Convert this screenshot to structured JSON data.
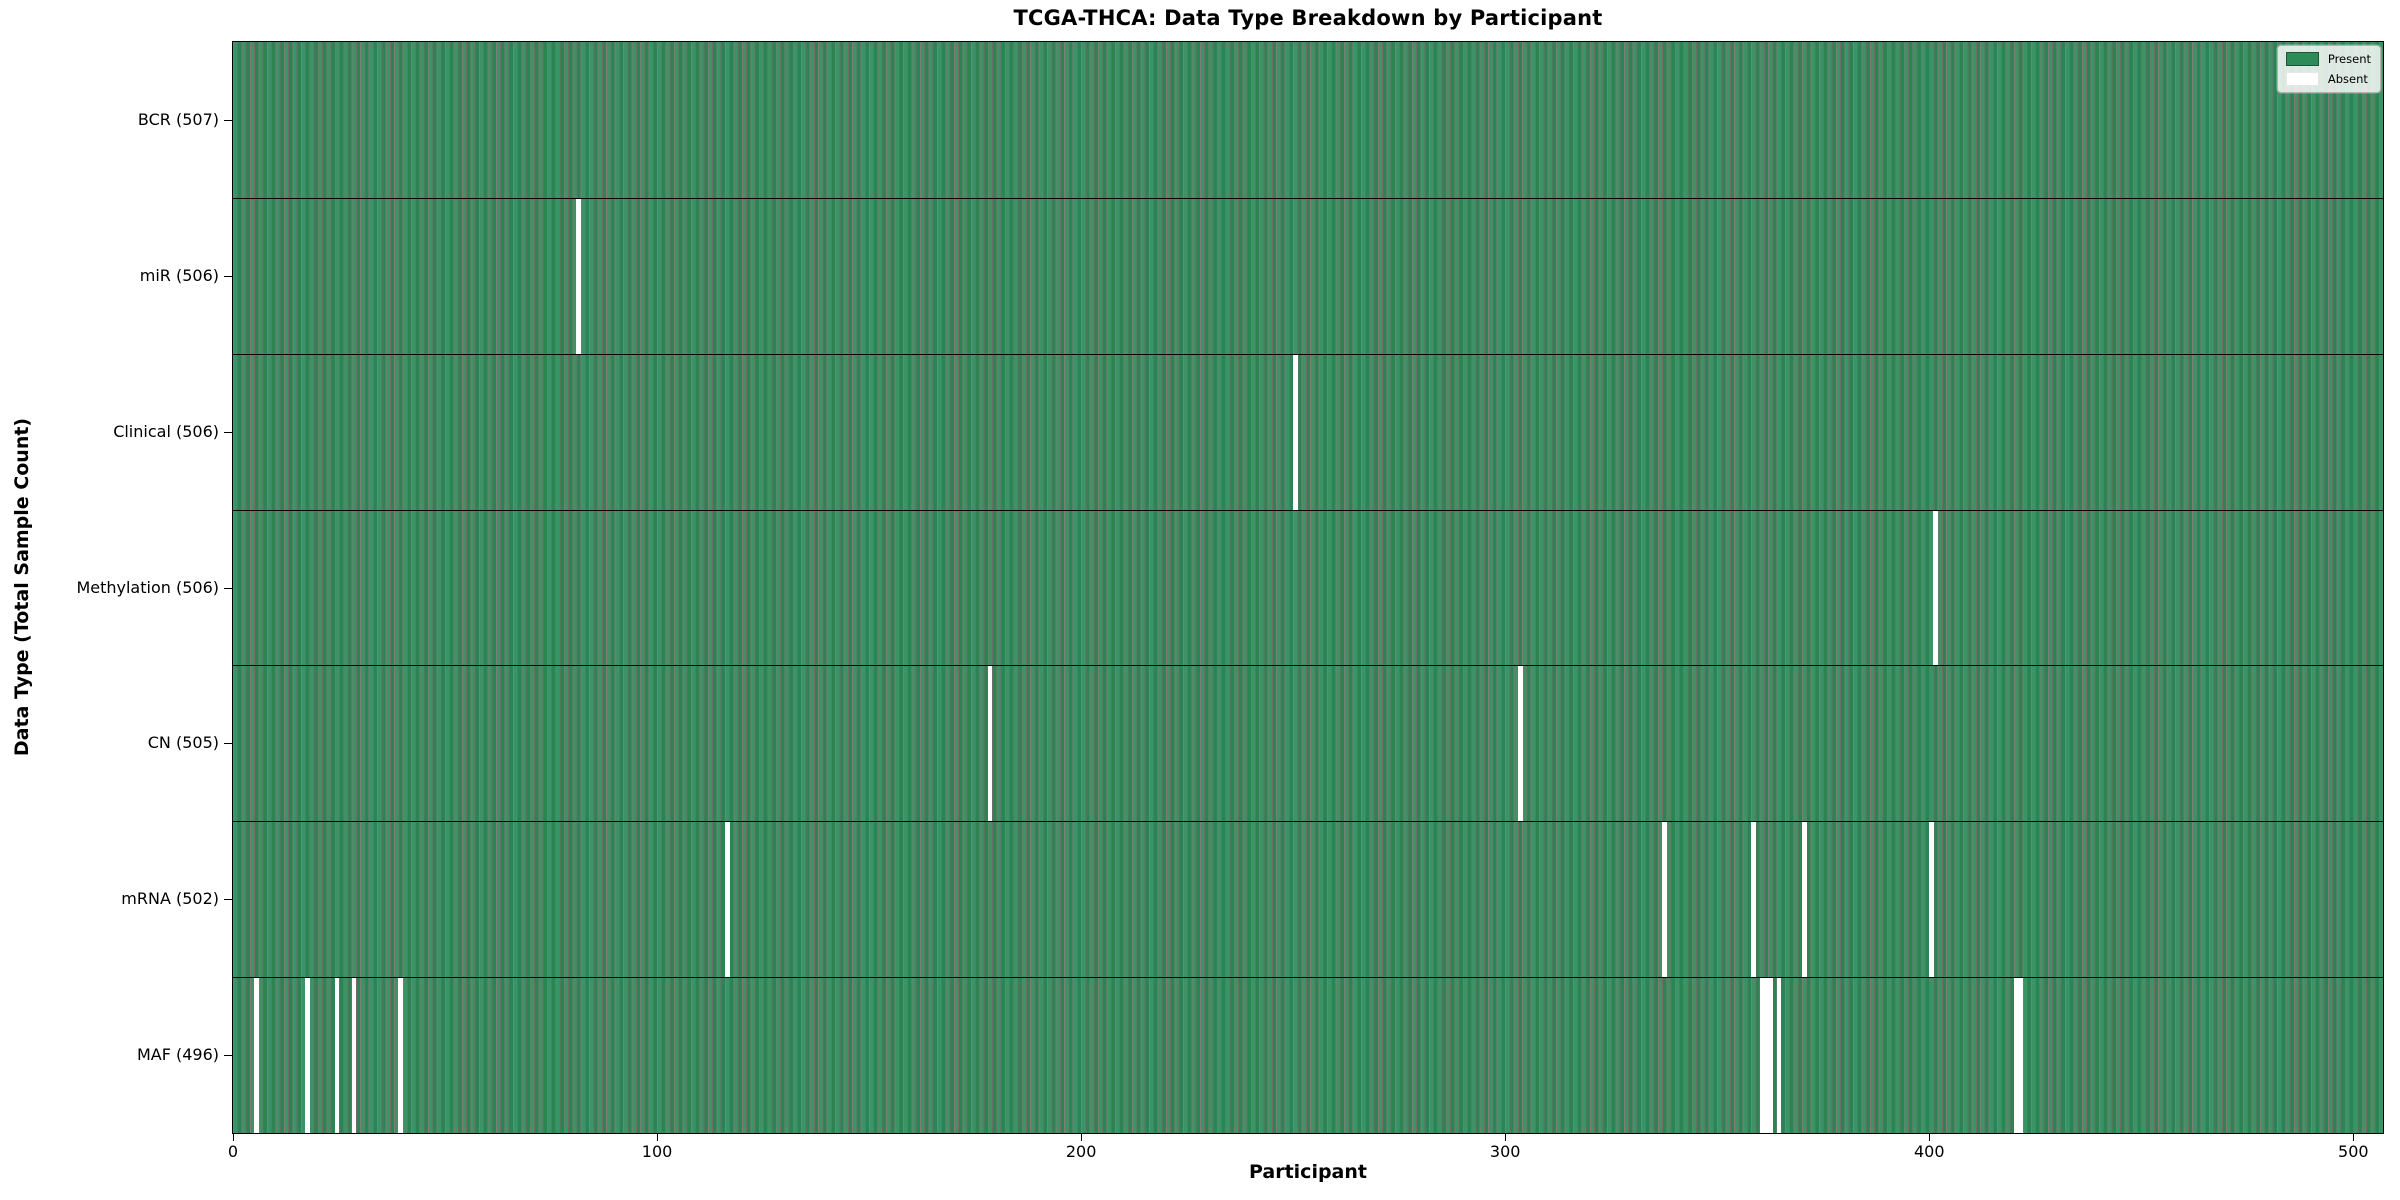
{
  "chart_data": {
    "type": "heatmap",
    "title": "TCGA-THCA: Data Type Breakdown by Participant",
    "xlabel": "Participant",
    "ylabel": "Data Type (Total Sample Count)",
    "n_participants": 507,
    "xlim": [
      0,
      507
    ],
    "x_ticks": [
      "0",
      "100",
      "200",
      "300",
      "400",
      "500"
    ],
    "grid": false,
    "legend": {
      "present": "Present",
      "absent": "Absent",
      "position": "upper right"
    },
    "colors": {
      "present": "#2e8b57",
      "absent": "#ffffff",
      "bar_edge": "rgba(0,0,0,0.55)",
      "row_divider": "#000000"
    },
    "rows": [
      {
        "data_type": "BCR",
        "label": "BCR (507)",
        "present_count": 507,
        "absent_participants": []
      },
      {
        "data_type": "miR",
        "label": "miR (506)",
        "present_count": 506,
        "absent_participants": [
          81
        ]
      },
      {
        "data_type": "Clinical",
        "label": "Clinical (506)",
        "present_count": 506,
        "absent_participants": [
          250
        ]
      },
      {
        "data_type": "Methylation",
        "label": "Methylation (506)",
        "present_count": 506,
        "absent_participants": [
          401
        ]
      },
      {
        "data_type": "CN",
        "label": "CN (505)",
        "present_count": 505,
        "absent_participants": [
          178,
          303
        ]
      },
      {
        "data_type": "mRNA",
        "label": "mRNA (502)",
        "present_count": 502,
        "absent_participants": [
          116,
          337,
          358,
          370,
          400
        ]
      },
      {
        "data_type": "MAF",
        "label": "MAF (496)",
        "present_count": 496,
        "absent_participants": [
          5,
          17,
          24,
          28,
          39,
          360,
          361,
          362,
          364,
          420,
          421
        ]
      }
    ]
  }
}
